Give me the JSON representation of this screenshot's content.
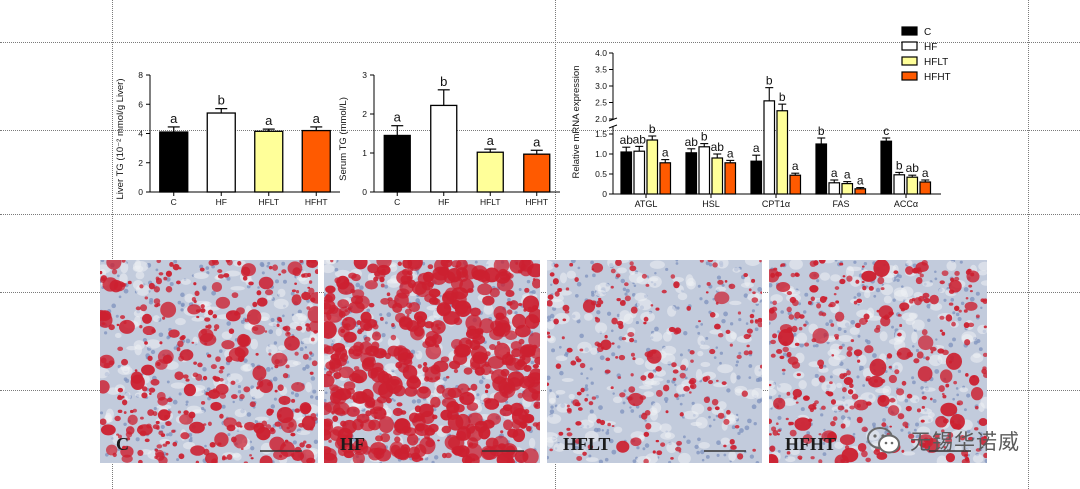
{
  "groups": [
    "C",
    "HF",
    "HFLT",
    "HFHT"
  ],
  "colors": {
    "C": "#000000",
    "HF": "#ffffff",
    "HFLT": "#ffff99",
    "HFHT": "#ff5a00",
    "micro_stain": "#cc2030",
    "micro_bg": "#c2cbdc"
  },
  "chart_data": [
    {
      "type": "bar",
      "ylabel": "Liver TG (10⁻² mmol/g Liver)",
      "categories": [
        "C",
        "HF",
        "HFLT",
        "HFHT"
      ],
      "values": [
        4.1,
        5.4,
        4.15,
        4.2
      ],
      "errors": [
        0.35,
        0.3,
        0.15,
        0.25
      ],
      "letters": [
        "a",
        "b",
        "a",
        "a"
      ],
      "yticks": [
        "0",
        "2",
        "4",
        "6",
        "8"
      ],
      "ylim": [
        0,
        8
      ]
    },
    {
      "type": "bar",
      "ylabel": "Serum TG (mmol/L)",
      "categories": [
        "C",
        "HF",
        "HFLT",
        "HFHT"
      ],
      "values": [
        1.45,
        2.22,
        1.02,
        0.97
      ],
      "errors": [
        0.25,
        0.4,
        0.08,
        0.1
      ],
      "letters": [
        "a",
        "b",
        "a",
        "a"
      ],
      "yticks": [
        "0",
        "1",
        "2",
        "3"
      ],
      "ylim": [
        0,
        3
      ]
    },
    {
      "type": "bar",
      "ylabel": "Relative mRNA expression",
      "categories": [
        "ATGL",
        "HSL",
        "CPT1α",
        "FAS",
        "ACCα"
      ],
      "series": [
        {
          "name": "C",
          "values": [
            1.05,
            1.03,
            0.82,
            1.25,
            1.32
          ],
          "errors": [
            0.12,
            0.1,
            0.15,
            0.15,
            0.08
          ],
          "letters": [
            "ab",
            "ab",
            "a",
            "b",
            "c"
          ]
        },
        {
          "name": "HF",
          "values": [
            1.07,
            1.18,
            2.55,
            0.28,
            0.48
          ],
          "errors": [
            0.12,
            0.08,
            0.4,
            0.07,
            0.06
          ],
          "letters": [
            "ab",
            "b",
            "b",
            "a",
            "b"
          ]
        },
        {
          "name": "HFLT",
          "values": [
            1.35,
            0.9,
            2.25,
            0.26,
            0.42
          ],
          "errors": [
            0.1,
            0.1,
            0.2,
            0.05,
            0.05
          ],
          "letters": [
            "b",
            "ab",
            "b",
            "a",
            "ab"
          ]
        },
        {
          "name": "HFHT",
          "values": [
            0.78,
            0.78,
            0.47,
            0.13,
            0.3
          ],
          "errors": [
            0.08,
            0.06,
            0.05,
            0.03,
            0.05
          ],
          "letters": [
            "a",
            "a",
            "a",
            "a",
            "a"
          ]
        }
      ],
      "yticks": [
        "0",
        "0.5",
        "1.0",
        "1.5",
        "2.0",
        "2.5",
        "3.0",
        "3.5",
        "4.0"
      ],
      "ylim": [
        0,
        4.0
      ],
      "axis_break": [
        1.5,
        2.0
      ],
      "legend": [
        "C",
        "HF",
        "HFLT",
        "HFHT"
      ]
    }
  ],
  "micrographs": [
    {
      "label": "C",
      "density": 0.55,
      "large_fraction": 0.25
    },
    {
      "label": "HF",
      "density": 0.85,
      "large_fraction": 0.7
    },
    {
      "label": "HFLT",
      "density": 0.32,
      "large_fraction": 0.05
    },
    {
      "label": "HFHT",
      "density": 0.5,
      "large_fraction": 0.2
    }
  ],
  "watermark": {
    "icon": "wechat-icon",
    "text": "无锡华诺威"
  }
}
